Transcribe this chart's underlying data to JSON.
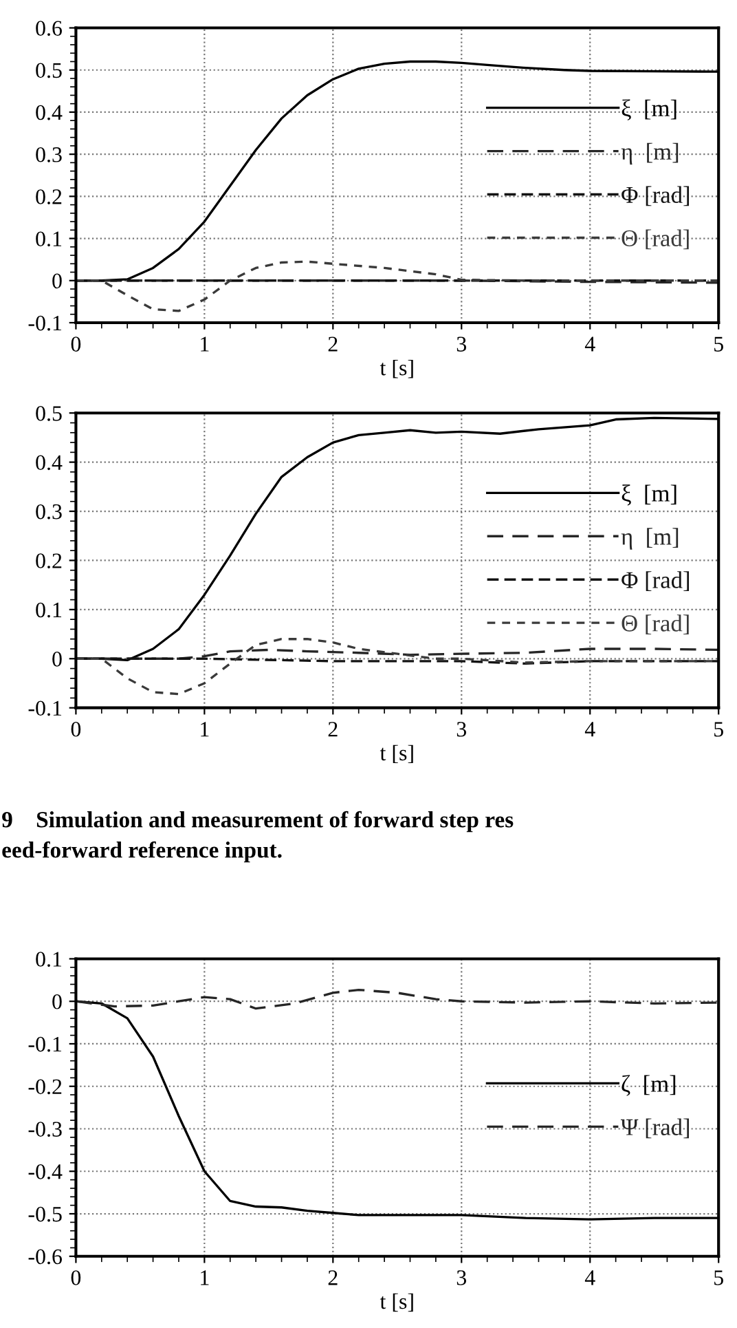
{
  "chart_data": [
    {
      "type": "line",
      "xlabel": "t [s]",
      "xlim": [
        0,
        5
      ],
      "xticks": [
        0,
        1,
        2,
        3,
        4,
        5
      ],
      "ylim": [
        -0.1,
        0.6
      ],
      "yticks": [
        -0.1,
        0,
        0.1,
        0.2,
        0.3,
        0.4,
        0.5,
        0.6
      ],
      "grid": true,
      "legend": "right",
      "marker": "none",
      "series": [
        {
          "name": "ξ  [m]",
          "color": "#000000",
          "line_style": "solid",
          "x": [
            0,
            0.2,
            0.4,
            0.6,
            0.8,
            1.0,
            1.2,
            1.4,
            1.6,
            1.8,
            2.0,
            2.2,
            2.4,
            2.6,
            2.8,
            3.0,
            3.2,
            3.5,
            3.8,
            4.0,
            4.5,
            5.0
          ],
          "values": [
            0,
            0,
            0.003,
            0.03,
            0.075,
            0.14,
            0.225,
            0.31,
            0.385,
            0.44,
            0.478,
            0.503,
            0.515,
            0.52,
            0.52,
            0.517,
            0.512,
            0.505,
            0.5,
            0.498,
            0.497,
            0.496
          ]
        },
        {
          "name": "η  [m]",
          "color": "#262626",
          "line_style": "dashed",
          "x": [
            0,
            1,
            2,
            3,
            4,
            5
          ],
          "values": [
            0,
            0,
            0,
            0,
            -0.003,
            -0.005
          ]
        },
        {
          "name": "Φ [rad]",
          "color": "#131313",
          "line_style": "dashed",
          "x": [
            0,
            1,
            2,
            3,
            4,
            5
          ],
          "values": [
            0,
            0,
            0,
            0,
            0,
            0
          ]
        },
        {
          "name": "Θ [rad]",
          "color": "#3a3a3a",
          "line_style": "dashed",
          "x": [
            0,
            0.2,
            0.4,
            0.6,
            0.8,
            1.0,
            1.2,
            1.4,
            1.6,
            1.8,
            2.0,
            2.4,
            2.8,
            3.0,
            3.5,
            5.0
          ],
          "values": [
            0,
            0,
            -0.035,
            -0.068,
            -0.072,
            -0.045,
            0.0,
            0.03,
            0.043,
            0.045,
            0.04,
            0.03,
            0.015,
            0.002,
            0,
            0
          ]
        }
      ]
    },
    {
      "type": "line",
      "xlabel": "t [s]",
      "xlim": [
        0,
        5
      ],
      "xticks": [
        0,
        1,
        2,
        3,
        4,
        5
      ],
      "ylim": [
        -0.1,
        0.5
      ],
      "yticks": [
        -0.1,
        0,
        0.1,
        0.2,
        0.3,
        0.4,
        0.5
      ],
      "grid": true,
      "legend": "right",
      "marker": "none",
      "annotations": [
        "9    Simulation and measurement of forward step res",
        "eed-forward reference input."
      ],
      "series": [
        {
          "name": "ξ  [m]",
          "color": "#000000",
          "line_style": "solid",
          "x": [
            0,
            0.2,
            0.4,
            0.6,
            0.8,
            1.0,
            1.2,
            1.4,
            1.6,
            1.8,
            2.0,
            2.2,
            2.4,
            2.6,
            2.8,
            3.0,
            3.3,
            3.6,
            4.0,
            4.2,
            4.5,
            5.0
          ],
          "values": [
            0,
            0,
            -0.003,
            0.02,
            0.06,
            0.13,
            0.21,
            0.295,
            0.37,
            0.41,
            0.44,
            0.455,
            0.46,
            0.465,
            0.46,
            0.462,
            0.458,
            0.467,
            0.475,
            0.487,
            0.49,
            0.488
          ]
        },
        {
          "name": "η  [m]",
          "color": "#262626",
          "line_style": "dashed",
          "x": [
            0,
            0.8,
            1.0,
            1.2,
            1.5,
            1.8,
            2.2,
            2.6,
            3.0,
            3.5,
            4.0,
            4.5,
            5.0
          ],
          "values": [
            0,
            0,
            0.005,
            0.015,
            0.018,
            0.015,
            0.012,
            0.008,
            0.01,
            0.012,
            0.02,
            0.02,
            0.018
          ]
        },
        {
          "name": "Φ [rad]",
          "color": "#131313",
          "line_style": "dashed",
          "x": [
            0,
            1,
            2,
            3,
            3.5,
            4,
            5
          ],
          "values": [
            0,
            0,
            -0.005,
            -0.005,
            -0.01,
            -0.005,
            -0.005
          ]
        },
        {
          "name": "Θ [rad]",
          "color": "#3a3a3a",
          "line_style": "dashed",
          "x": [
            0,
            0.2,
            0.4,
            0.6,
            0.8,
            1.0,
            1.2,
            1.4,
            1.6,
            1.8,
            2.0,
            2.2,
            2.5,
            2.8,
            3.0,
            3.5,
            4.0,
            5.0
          ],
          "values": [
            0,
            0,
            -0.04,
            -0.068,
            -0.072,
            -0.05,
            -0.01,
            0.028,
            0.04,
            0.04,
            0.033,
            0.02,
            0.01,
            0.0,
            0.0,
            -0.008,
            -0.005,
            -0.005
          ]
        }
      ]
    },
    {
      "type": "line",
      "xlabel": "t [s]",
      "xlim": [
        0,
        5
      ],
      "xticks": [
        0,
        1,
        2,
        3,
        4,
        5
      ],
      "ylim": [
        -0.6,
        0.1
      ],
      "yticks": [
        -0.6,
        -0.5,
        -0.4,
        -0.3,
        -0.2,
        -0.1,
        0,
        0.1
      ],
      "grid": true,
      "legend": "right",
      "marker": "none",
      "series": [
        {
          "name": "ζ  [m]",
          "color": "#000000",
          "line_style": "solid",
          "x": [
            0,
            0.2,
            0.4,
            0.6,
            0.8,
            1.0,
            1.2,
            1.4,
            1.6,
            1.8,
            2.0,
            2.2,
            2.5,
            3.0,
            3.5,
            4.0,
            4.5,
            5.0
          ],
          "values": [
            0,
            -0.005,
            -0.04,
            -0.13,
            -0.27,
            -0.4,
            -0.47,
            -0.483,
            -0.485,
            -0.493,
            -0.498,
            -0.503,
            -0.503,
            -0.503,
            -0.51,
            -0.513,
            -0.51,
            -0.51
          ]
        },
        {
          "name": "Ψ [rad]",
          "color": "#262626",
          "line_style": "dashed",
          "x": [
            0,
            0.3,
            0.6,
            0.8,
            1.0,
            1.2,
            1.4,
            1.7,
            2.0,
            2.2,
            2.5,
            2.8,
            3.0,
            3.5,
            4.0,
            4.5,
            5.0
          ],
          "values": [
            0,
            -0.012,
            -0.01,
            0.0,
            0.01,
            0.005,
            -0.017,
            -0.005,
            0.02,
            0.027,
            0.02,
            0.005,
            0,
            -0.003,
            0,
            -0.005,
            -0.003
          ]
        }
      ]
    }
  ]
}
